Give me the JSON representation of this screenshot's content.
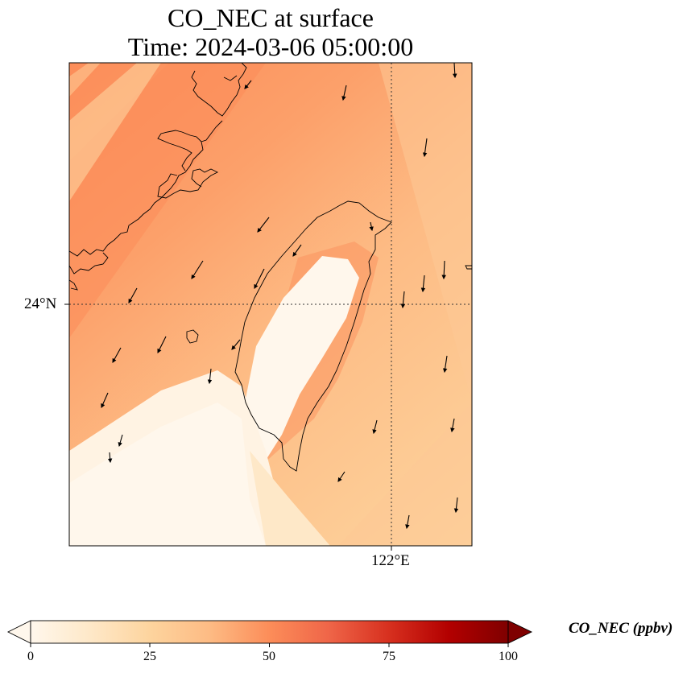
{
  "title": {
    "line1": "CO_NEC at surface",
    "line2": "Time: 2024-03-06 05:00:00"
  },
  "axes": {
    "lat_label": "24°N",
    "lon_label": "122°E"
  },
  "colorbar": {
    "label": "CO_NEC (ppbv)",
    "ticks": [
      "0",
      "25",
      "50",
      "75",
      "100"
    ],
    "range": [
      0,
      100
    ],
    "extend": "both",
    "colormap": "OrRd",
    "colors": [
      "#fff7ec",
      "#fee8c8",
      "#fdd49e",
      "#fdbb84",
      "#fc8d59",
      "#ef6548",
      "#d7301f",
      "#b30000",
      "#7f0000"
    ]
  },
  "map": {
    "region": "Taiwan",
    "grid": "dotted",
    "wind_vectors": true
  }
}
